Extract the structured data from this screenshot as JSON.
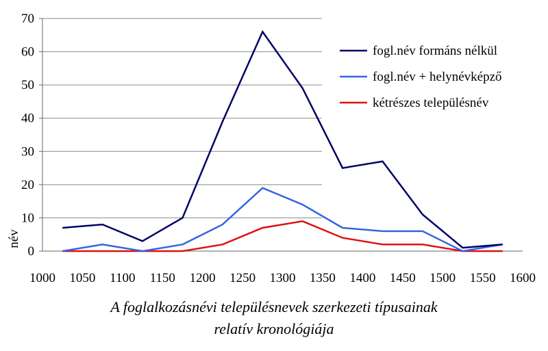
{
  "chart_data": {
    "type": "line",
    "title": "A foglalkozásnévi településnevek szerkezeti típusainak",
    "subtitle": "relatív kronológiája",
    "xlabel": "",
    "ylabel": "név",
    "xlim": [
      1000,
      1600
    ],
    "ylim": [
      0,
      70
    ],
    "xticks": [
      1000,
      1050,
      1100,
      1150,
      1200,
      1250,
      1300,
      1350,
      1400,
      1450,
      1500,
      1550,
      1600
    ],
    "yticks": [
      0,
      10,
      20,
      30,
      40,
      50,
      60,
      70
    ],
    "x": [
      1025,
      1075,
      1125,
      1175,
      1225,
      1275,
      1325,
      1375,
      1425,
      1475,
      1525,
      1575
    ],
    "series": [
      {
        "name": "fogl.név formáns nélkül",
        "color": "#000066",
        "values": [
          7,
          8,
          3,
          10,
          39,
          66,
          49,
          25,
          27,
          11,
          1,
          2
        ]
      },
      {
        "name": "fogl.név + helynévképző",
        "color": "#3366dd",
        "values": [
          0,
          2,
          0,
          2,
          8,
          19,
          14,
          7,
          6,
          6,
          0,
          2
        ]
      },
      {
        "name": "kétrészes településnév",
        "color": "#dd1111",
        "values": [
          0,
          0,
          0,
          0,
          2,
          7,
          9,
          4,
          2,
          2,
          0,
          0
        ]
      }
    ],
    "grid": true,
    "legend": "top-right"
  }
}
